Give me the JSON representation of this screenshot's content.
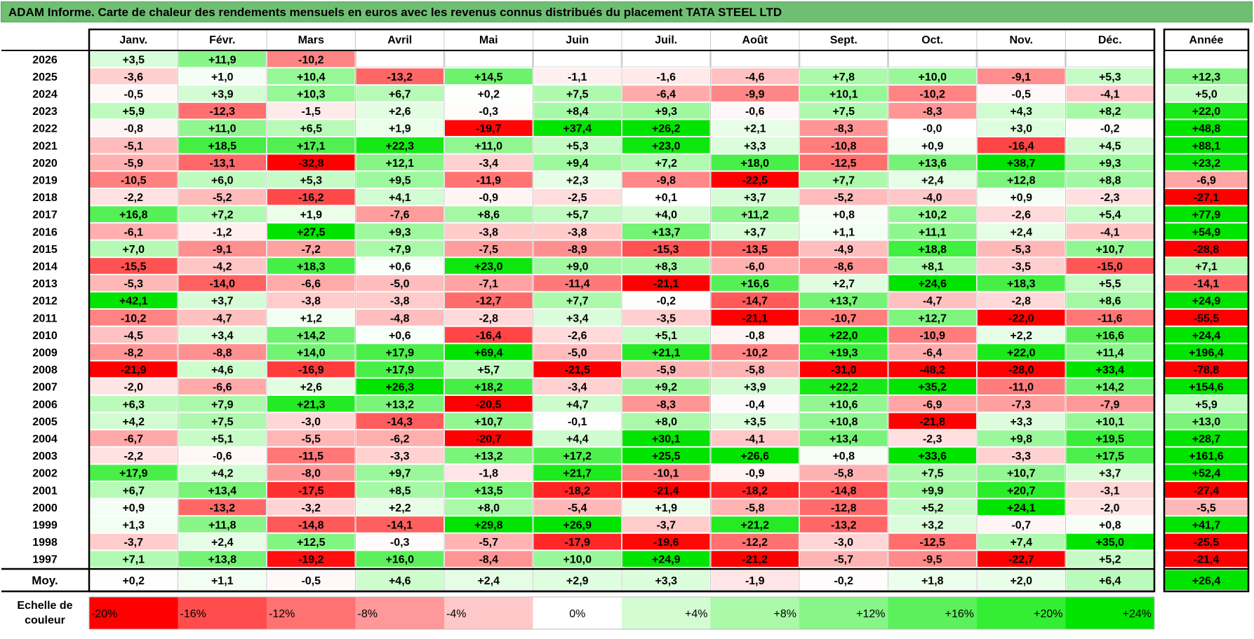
{
  "title": "ADAM Informe. Carte de chaleur des rendements mensuels en euros avec les revenus connus distribués du placement TATA STEEL LTD",
  "year_col_header": "Année",
  "avg_label": "Moy.",
  "scale_label_lines": [
    "Echelle de",
    "couleur"
  ],
  "chart_data": {
    "type": "heatmap",
    "months": [
      "Janv.",
      "Févr.",
      "Mars",
      "Avril",
      "Mai",
      "Juin",
      "Juil.",
      "Août",
      "Sept.",
      "Oct.",
      "Nov.",
      "Déc."
    ],
    "years": [
      "2026",
      "2025",
      "2024",
      "2023",
      "2022",
      "2021",
      "2020",
      "2019",
      "2018",
      "2017",
      "2016",
      "2015",
      "2014",
      "2013",
      "2012",
      "2011",
      "2010",
      "2009",
      "2008",
      "2007",
      "2006",
      "2005",
      "2004",
      "2003",
      "2002",
      "2001",
      "2000",
      "1999",
      "1998",
      "1997"
    ],
    "values": [
      [
        3.5,
        11.9,
        -10.2,
        null,
        null,
        null,
        null,
        null,
        null,
        null,
        null,
        null
      ],
      [
        -3.6,
        1.0,
        10.4,
        -13.2,
        14.5,
        -1.1,
        -1.6,
        -4.6,
        7.8,
        10.0,
        -9.1,
        5.3
      ],
      [
        -0.5,
        3.9,
        10.3,
        6.7,
        0.2,
        7.5,
        -6.4,
        -9.9,
        10.1,
        -10.2,
        -0.5,
        -4.1
      ],
      [
        5.9,
        -12.3,
        -1.5,
        2.6,
        -0.3,
        8.4,
        9.3,
        -0.6,
        7.5,
        -8.3,
        4.3,
        8.2
      ],
      [
        -0.8,
        11.0,
        6.5,
        1.9,
        -19.7,
        37.4,
        26.2,
        2.1,
        -8.3,
        -0.0,
        3.0,
        -0.2
      ],
      [
        -5.1,
        18.5,
        17.1,
        22.3,
        11.0,
        5.3,
        23.0,
        3.3,
        -10.8,
        0.9,
        -16.4,
        4.5
      ],
      [
        -5.9,
        -13.1,
        -32.8,
        12.1,
        -3.4,
        9.4,
        7.2,
        18.0,
        -12.5,
        13.6,
        38.7,
        9.3
      ],
      [
        -10.5,
        6.0,
        5.3,
        9.5,
        -11.9,
        2.3,
        -9.8,
        -22.5,
        7.7,
        2.4,
        12.8,
        8.8
      ],
      [
        -2.2,
        -5.2,
        -16.2,
        4.1,
        -0.9,
        -2.5,
        0.1,
        3.7,
        -5.2,
        -4.0,
        0.9,
        -2.3
      ],
      [
        16.8,
        7.2,
        1.9,
        -7.6,
        8.6,
        5.7,
        4.0,
        11.2,
        0.8,
        10.2,
        -2.6,
        5.4
      ],
      [
        -6.1,
        -1.2,
        27.5,
        9.3,
        -3.8,
        -3.8,
        13.7,
        3.7,
        1.1,
        11.1,
        2.4,
        -4.1
      ],
      [
        7.0,
        -9.1,
        -7.2,
        7.9,
        -7.5,
        -8.9,
        -15.3,
        -13.5,
        -4.9,
        18.8,
        -5.3,
        10.7
      ],
      [
        -15.5,
        -4.2,
        18.3,
        0.6,
        23.0,
        9.0,
        8.3,
        -6.0,
        -8.6,
        8.1,
        -3.5,
        -15.0
      ],
      [
        -5.3,
        -14.0,
        -6.6,
        -5.0,
        -7.1,
        -11.4,
        -21.1,
        16.6,
        2.7,
        24.6,
        18.3,
        5.5
      ],
      [
        42.1,
        3.7,
        -3.8,
        -3.8,
        -12.7,
        7.7,
        -0.2,
        -14.7,
        13.7,
        -4.7,
        -2.8,
        8.6
      ],
      [
        -10.2,
        -4.7,
        1.2,
        -4.8,
        -2.8,
        3.4,
        -3.5,
        -21.1,
        -10.7,
        12.7,
        -22.0,
        -11.6
      ],
      [
        -4.5,
        3.4,
        14.2,
        0.6,
        -16.4,
        -2.6,
        5.1,
        -0.8,
        22.0,
        -10.9,
        2.2,
        16.6
      ],
      [
        -8.2,
        -8.8,
        14.0,
        17.9,
        69.4,
        -5.0,
        21.1,
        -10.2,
        19.3,
        -6.4,
        22.0,
        11.4
      ],
      [
        -21.9,
        4.6,
        -16.9,
        17.9,
        5.7,
        -21.5,
        -5.9,
        -5.8,
        -31.0,
        -48.2,
        -28.0,
        33.4
      ],
      [
        -2.0,
        -6.6,
        2.6,
        26.3,
        18.2,
        -3.4,
        9.2,
        3.9,
        22.2,
        35.2,
        -11.0,
        14.2
      ],
      [
        6.3,
        7.9,
        21.3,
        13.2,
        -20.5,
        4.7,
        -8.3,
        -0.4,
        10.6,
        -6.9,
        -7.3,
        -7.9
      ],
      [
        4.2,
        7.5,
        -3.0,
        -14.3,
        10.7,
        -0.1,
        8.0,
        3.5,
        10.8,
        -21.8,
        3.3,
        10.1
      ],
      [
        -6.7,
        5.1,
        -5.5,
        -6.2,
        -20.7,
        4.4,
        30.1,
        -4.1,
        13.4,
        -2.3,
        9.8,
        19.5
      ],
      [
        -2.2,
        -0.6,
        -11.5,
        -3.3,
        13.2,
        17.2,
        25.5,
        26.6,
        0.8,
        33.6,
        -3.3,
        17.5
      ],
      [
        17.9,
        4.2,
        -8.0,
        9.7,
        -1.8,
        21.7,
        -10.1,
        -0.9,
        -5.8,
        7.5,
        10.7,
        3.7
      ],
      [
        6.7,
        13.4,
        -17.5,
        8.5,
        13.5,
        -18.2,
        -21.4,
        -18.2,
        -14.8,
        9.9,
        20.7,
        -3.1
      ],
      [
        0.9,
        -13.2,
        -3.2,
        2.2,
        8.0,
        -5.4,
        1.9,
        -5.8,
        -12.8,
        5.2,
        24.1,
        -2.0
      ],
      [
        1.3,
        11.8,
        -14.8,
        -14.1,
        29.8,
        26.9,
        -3.7,
        21.2,
        -13.2,
        3.2,
        -0.7,
        0.8
      ],
      [
        -3.7,
        2.4,
        12.5,
        -0.3,
        -5.7,
        -17.9,
        -19.6,
        -12.2,
        -3.0,
        -12.5,
        7.4,
        35.0
      ],
      [
        7.1,
        13.8,
        -19.2,
        16.0,
        -8.4,
        10.0,
        24.9,
        -21.2,
        -5.7,
        -9.5,
        -22.7,
        5.2
      ]
    ],
    "value_labels": [
      [
        "+3,5",
        "+11,9",
        "-10,2",
        "",
        "",
        "",
        "",
        "",
        "",
        "",
        "",
        ""
      ],
      [
        "-3,6",
        "+1,0",
        "+10,4",
        "-13,2",
        "+14,5",
        "-1,1",
        "-1,6",
        "-4,6",
        "+7,8",
        "+10,0",
        "-9,1",
        "+5,3"
      ],
      [
        "-0,5",
        "+3,9",
        "+10,3",
        "+6,7",
        "+0,2",
        "+7,5",
        "-6,4",
        "-9,9",
        "+10,1",
        "-10,2",
        "-0,5",
        "-4,1"
      ],
      [
        "+5,9",
        "-12,3",
        "-1,5",
        "+2,6",
        "-0,3",
        "+8,4",
        "+9,3",
        "-0,6",
        "+7,5",
        "-8,3",
        "+4,3",
        "+8,2"
      ],
      [
        "-0,8",
        "+11,0",
        "+6,5",
        "+1,9",
        "-19,7",
        "+37,4",
        "+26,2",
        "+2,1",
        "-8,3",
        "-0,0",
        "+3,0",
        "-0,2"
      ],
      [
        "-5,1",
        "+18,5",
        "+17,1",
        "+22,3",
        "+11,0",
        "+5,3",
        "+23,0",
        "+3,3",
        "-10,8",
        "+0,9",
        "-16,4",
        "+4,5"
      ],
      [
        "-5,9",
        "-13,1",
        "-32,8",
        "+12,1",
        "-3,4",
        "+9,4",
        "+7,2",
        "+18,0",
        "-12,5",
        "+13,6",
        "+38,7",
        "+9,3"
      ],
      [
        "-10,5",
        "+6,0",
        "+5,3",
        "+9,5",
        "-11,9",
        "+2,3",
        "-9,8",
        "-22,5",
        "+7,7",
        "+2,4",
        "+12,8",
        "+8,8"
      ],
      [
        "-2,2",
        "-5,2",
        "-16,2",
        "+4,1",
        "-0,9",
        "-2,5",
        "+0,1",
        "+3,7",
        "-5,2",
        "-4,0",
        "+0,9",
        "-2,3"
      ],
      [
        "+16,8",
        "+7,2",
        "+1,9",
        "-7,6",
        "+8,6",
        "+5,7",
        "+4,0",
        "+11,2",
        "+0,8",
        "+10,2",
        "-2,6",
        "+5,4"
      ],
      [
        "-6,1",
        "-1,2",
        "+27,5",
        "+9,3",
        "-3,8",
        "-3,8",
        "+13,7",
        "+3,7",
        "+1,1",
        "+11,1",
        "+2,4",
        "-4,1"
      ],
      [
        "+7,0",
        "-9,1",
        "-7,2",
        "+7,9",
        "-7,5",
        "-8,9",
        "-15,3",
        "-13,5",
        "-4,9",
        "+18,8",
        "-5,3",
        "+10,7"
      ],
      [
        "-15,5",
        "-4,2",
        "+18,3",
        "+0,6",
        "+23,0",
        "+9,0",
        "+8,3",
        "-6,0",
        "-8,6",
        "+8,1",
        "-3,5",
        "-15,0"
      ],
      [
        "-5,3",
        "-14,0",
        "-6,6",
        "-5,0",
        "-7,1",
        "-11,4",
        "-21,1",
        "+16,6",
        "+2,7",
        "+24,6",
        "+18,3",
        "+5,5"
      ],
      [
        "+42,1",
        "+3,7",
        "-3,8",
        "-3,8",
        "-12,7",
        "+7,7",
        "-0,2",
        "-14,7",
        "+13,7",
        "-4,7",
        "-2,8",
        "+8,6"
      ],
      [
        "-10,2",
        "-4,7",
        "+1,2",
        "-4,8",
        "-2,8",
        "+3,4",
        "-3,5",
        "-21,1",
        "-10,7",
        "+12,7",
        "-22,0",
        "-11,6"
      ],
      [
        "-4,5",
        "+3,4",
        "+14,2",
        "+0,6",
        "-16,4",
        "-2,6",
        "+5,1",
        "-0,8",
        "+22,0",
        "-10,9",
        "+2,2",
        "+16,6"
      ],
      [
        "-8,2",
        "-8,8",
        "+14,0",
        "+17,9",
        "+69,4",
        "-5,0",
        "+21,1",
        "-10,2",
        "+19,3",
        "-6,4",
        "+22,0",
        "+11,4"
      ],
      [
        "-21,9",
        "+4,6",
        "-16,9",
        "+17,9",
        "+5,7",
        "-21,5",
        "-5,9",
        "-5,8",
        "-31,0",
        "-48,2",
        "-28,0",
        "+33,4"
      ],
      [
        "-2,0",
        "-6,6",
        "+2,6",
        "+26,3",
        "+18,2",
        "-3,4",
        "+9,2",
        "+3,9",
        "+22,2",
        "+35,2",
        "-11,0",
        "+14,2"
      ],
      [
        "+6,3",
        "+7,9",
        "+21,3",
        "+13,2",
        "-20,5",
        "+4,7",
        "-8,3",
        "-0,4",
        "+10,6",
        "-6,9",
        "-7,3",
        "-7,9"
      ],
      [
        "+4,2",
        "+7,5",
        "-3,0",
        "-14,3",
        "+10,7",
        "-0,1",
        "+8,0",
        "+3,5",
        "+10,8",
        "-21,8",
        "+3,3",
        "+10,1"
      ],
      [
        "-6,7",
        "+5,1",
        "-5,5",
        "-6,2",
        "-20,7",
        "+4,4",
        "+30,1",
        "-4,1",
        "+13,4",
        "-2,3",
        "+9,8",
        "+19,5"
      ],
      [
        "-2,2",
        "-0,6",
        "-11,5",
        "-3,3",
        "+13,2",
        "+17,2",
        "+25,5",
        "+26,6",
        "+0,8",
        "+33,6",
        "-3,3",
        "+17,5"
      ],
      [
        "+17,9",
        "+4,2",
        "-8,0",
        "+9,7",
        "-1,8",
        "+21,7",
        "-10,1",
        "-0,9",
        "-5,8",
        "+7,5",
        "+10,7",
        "+3,7"
      ],
      [
        "+6,7",
        "+13,4",
        "-17,5",
        "+8,5",
        "+13,5",
        "-18,2",
        "-21,4",
        "-18,2",
        "-14,8",
        "+9,9",
        "+20,7",
        "-3,1"
      ],
      [
        "+0,9",
        "-13,2",
        "-3,2",
        "+2,2",
        "+8,0",
        "-5,4",
        "+1,9",
        "-5,8",
        "-12,8",
        "+5,2",
        "+24,1",
        "-2,0"
      ],
      [
        "+1,3",
        "+11,8",
        "-14,8",
        "-14,1",
        "+29,8",
        "+26,9",
        "-3,7",
        "+21,2",
        "-13,2",
        "+3,2",
        "-0,7",
        "+0,8"
      ],
      [
        "-3,7",
        "+2,4",
        "+12,5",
        "-0,3",
        "-5,7",
        "-17,9",
        "-19,6",
        "-12,2",
        "-3,0",
        "-12,5",
        "+7,4",
        "+35,0"
      ],
      [
        "+7,1",
        "+13,8",
        "-19,2",
        "+16,0",
        "-8,4",
        "+10,0",
        "+24,9",
        "-21,2",
        "-5,7",
        "-9,5",
        "-22,7",
        "+5,2"
      ]
    ],
    "annual_values": [
      null,
      12.3,
      5.0,
      22.0,
      48.8,
      88.1,
      23.2,
      -6.9,
      -27.1,
      77.9,
      54.9,
      -28.8,
      7.1,
      -14.1,
      24.9,
      -55.5,
      24.4,
      196.4,
      -78.8,
      154.6,
      5.9,
      13.0,
      28.7,
      161.6,
      52.4,
      -27.4,
      -5.5,
      41.7,
      -25.5,
      -21.4
    ],
    "annual_labels": [
      "",
      "+12,3",
      "+5,0",
      "+22,0",
      "+48,8",
      "+88,1",
      "+23,2",
      "-6,9",
      "-27,1",
      "+77,9",
      "+54,9",
      "-28,8",
      "+7,1",
      "-14,1",
      "+24,9",
      "-55,5",
      "+24,4",
      "+196,4",
      "-78,8",
      "+154,6",
      "+5,9",
      "+13,0",
      "+28,7",
      "+161,6",
      "+52,4",
      "-27,4",
      "-5,5",
      "+41,7",
      "-25,5",
      "-21,4"
    ],
    "monthly_average_values": [
      0.2,
      1.1,
      -0.5,
      4.6,
      2.4,
      2.9,
      3.3,
      -1.9,
      -0.2,
      1.8,
      2.0,
      6.4
    ],
    "monthly_average_labels": [
      "+0,2",
      "+1,1",
      "-0,5",
      "+4,6",
      "+2,4",
      "+2,9",
      "+3,3",
      "-1,9",
      "-0,2",
      "+1,8",
      "+2,0",
      "+6,4"
    ],
    "overall_average_value": 26.4,
    "overall_average_label": "+26,4",
    "color_scale": {
      "stops": [
        -20,
        -16,
        -12,
        -8,
        -4,
        0,
        4,
        8,
        12,
        16,
        20,
        24
      ],
      "labels": [
        "-20%",
        "-16%",
        "-12%",
        "-8%",
        "-4%",
        "0%",
        "+4%",
        "+8%",
        "+12%",
        "+16%",
        "+20%",
        "+24%"
      ],
      "colors": [
        "#ff0000",
        "#ff4d4d",
        "#ff7272",
        "#ff9898",
        "#ffc8c8",
        "#ffffff",
        "#d3fcd3",
        "#a9f9a9",
        "#87f587",
        "#5cf05c",
        "#34ee34",
        "#00e400"
      ]
    }
  }
}
